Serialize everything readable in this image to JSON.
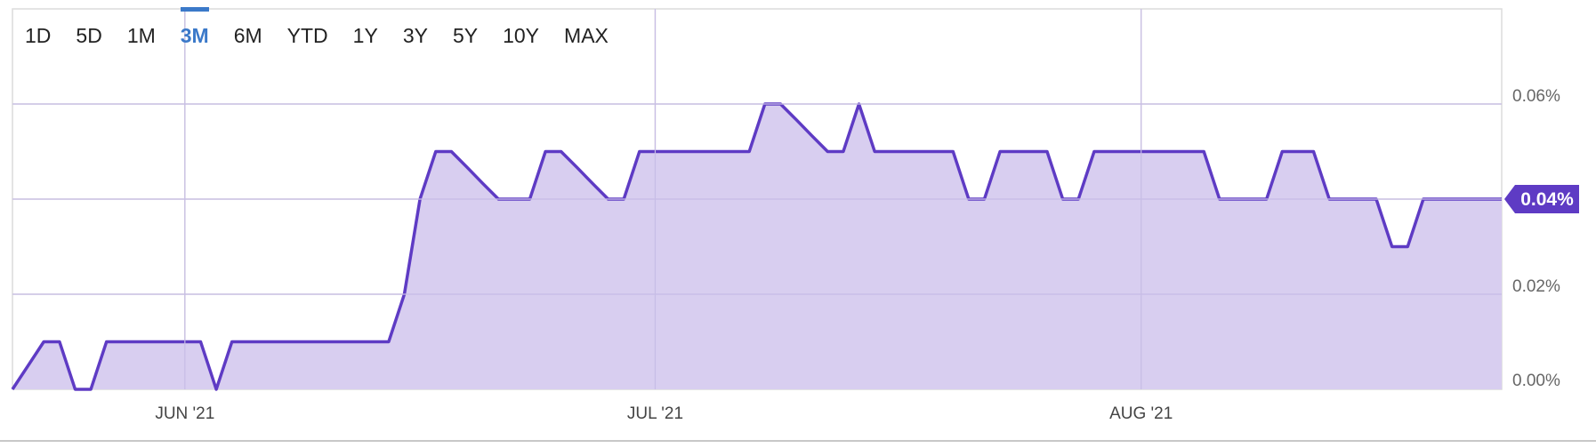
{
  "range_buttons": [
    {
      "label": "1D",
      "active": false
    },
    {
      "label": "5D",
      "active": false
    },
    {
      "label": "1M",
      "active": false
    },
    {
      "label": "3M",
      "active": true
    },
    {
      "label": "6M",
      "active": false
    },
    {
      "label": "YTD",
      "active": false
    },
    {
      "label": "1Y",
      "active": false
    },
    {
      "label": "3Y",
      "active": false
    },
    {
      "label": "5Y",
      "active": false
    },
    {
      "label": "10Y",
      "active": false
    },
    {
      "label": "MAX",
      "active": false
    }
  ],
  "colors": {
    "line": "#5e3bc4",
    "fill": "#d6cbef",
    "grid": "#dcdcdc",
    "active": "#3b79c9"
  },
  "chart_data": {
    "type": "area",
    "x_labels": [
      {
        "label": "JUN '21",
        "index": 11
      },
      {
        "label": "JUL '21",
        "index": 41
      },
      {
        "label": "AUG '21",
        "index": 72
      }
    ],
    "y_ticks": [
      {
        "value": 0.0,
        "label": "0.00%"
      },
      {
        "value": 0.02,
        "label": "0.02%"
      },
      {
        "value": 0.06,
        "label": "0.06%"
      }
    ],
    "ylim": [
      0,
      0.08
    ],
    "last_value_label": "0.04%",
    "grid": true,
    "series": [
      {
        "values": [
          0.0,
          0.005,
          0.01,
          0.01,
          0.0,
          0.0,
          0.01,
          0.01,
          0.01,
          0.01,
          0.01,
          0.01,
          0.01,
          0.0,
          0.01,
          0.01,
          0.01,
          0.01,
          0.01,
          0.01,
          0.01,
          0.01,
          0.01,
          0.01,
          0.01,
          0.02,
          0.04,
          0.05,
          0.05,
          0.0467,
          0.0433,
          0.04,
          0.04,
          0.04,
          0.05,
          0.05,
          0.0467,
          0.0433,
          0.04,
          0.04,
          0.05,
          0.05,
          0.05,
          0.05,
          0.05,
          0.05,
          0.05,
          0.05,
          0.06,
          0.06,
          0.0567,
          0.0533,
          0.05,
          0.05,
          0.06,
          0.05,
          0.05,
          0.05,
          0.05,
          0.05,
          0.05,
          0.04,
          0.04,
          0.05,
          0.05,
          0.05,
          0.05,
          0.04,
          0.04,
          0.05,
          0.05,
          0.05,
          0.05,
          0.05,
          0.05,
          0.05,
          0.05,
          0.04,
          0.04,
          0.04,
          0.04,
          0.05,
          0.05,
          0.05,
          0.04,
          0.04,
          0.04,
          0.04,
          0.03,
          0.03,
          0.04,
          0.04,
          0.04,
          0.04,
          0.04,
          0.04
        ]
      }
    ]
  }
}
